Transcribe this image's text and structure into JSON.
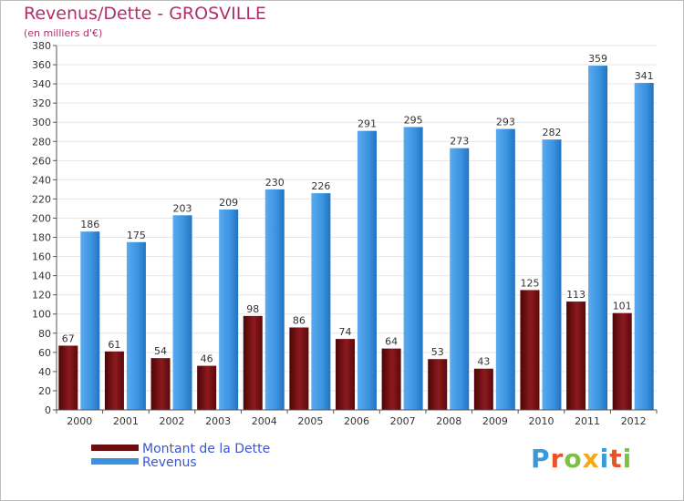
{
  "header": {
    "title": "Revenus/Dette - GROSVILLE",
    "subtitle": "(en milliers d'€)"
  },
  "logo": {
    "text": "Proxiti",
    "letter_colors": [
      "#3a9ad9",
      "#e8542a",
      "#7bc142",
      "#f2a81d",
      "#3a9ad9",
      "#e8542a",
      "#7bc142"
    ]
  },
  "colors": {
    "debt": "#6e0d10",
    "revenue": "#3a92de",
    "axis": "#555555",
    "grid": "#e6e6e6"
  },
  "chart_data": {
    "type": "bar",
    "categories": [
      "2000",
      "2001",
      "2002",
      "2003",
      "2004",
      "2005",
      "2006",
      "2007",
      "2008",
      "2009",
      "2010",
      "2011",
      "2012"
    ],
    "series": [
      {
        "name": "Montant de la Dette",
        "values": [
          67,
          61,
          54,
          46,
          98,
          86,
          74,
          64,
          53,
          43,
          125,
          113,
          101
        ]
      },
      {
        "name": "Revenus",
        "values": [
          186,
          175,
          203,
          209,
          230,
          226,
          291,
          295,
          273,
          293,
          282,
          359,
          341
        ]
      }
    ],
    "ylim": [
      0,
      380
    ],
    "y_ticks": [
      0,
      20,
      40,
      60,
      80,
      100,
      120,
      140,
      160,
      180,
      200,
      220,
      240,
      260,
      280,
      300,
      320,
      340,
      360,
      380
    ],
    "grid": true,
    "legend_position": "bottom-left"
  }
}
